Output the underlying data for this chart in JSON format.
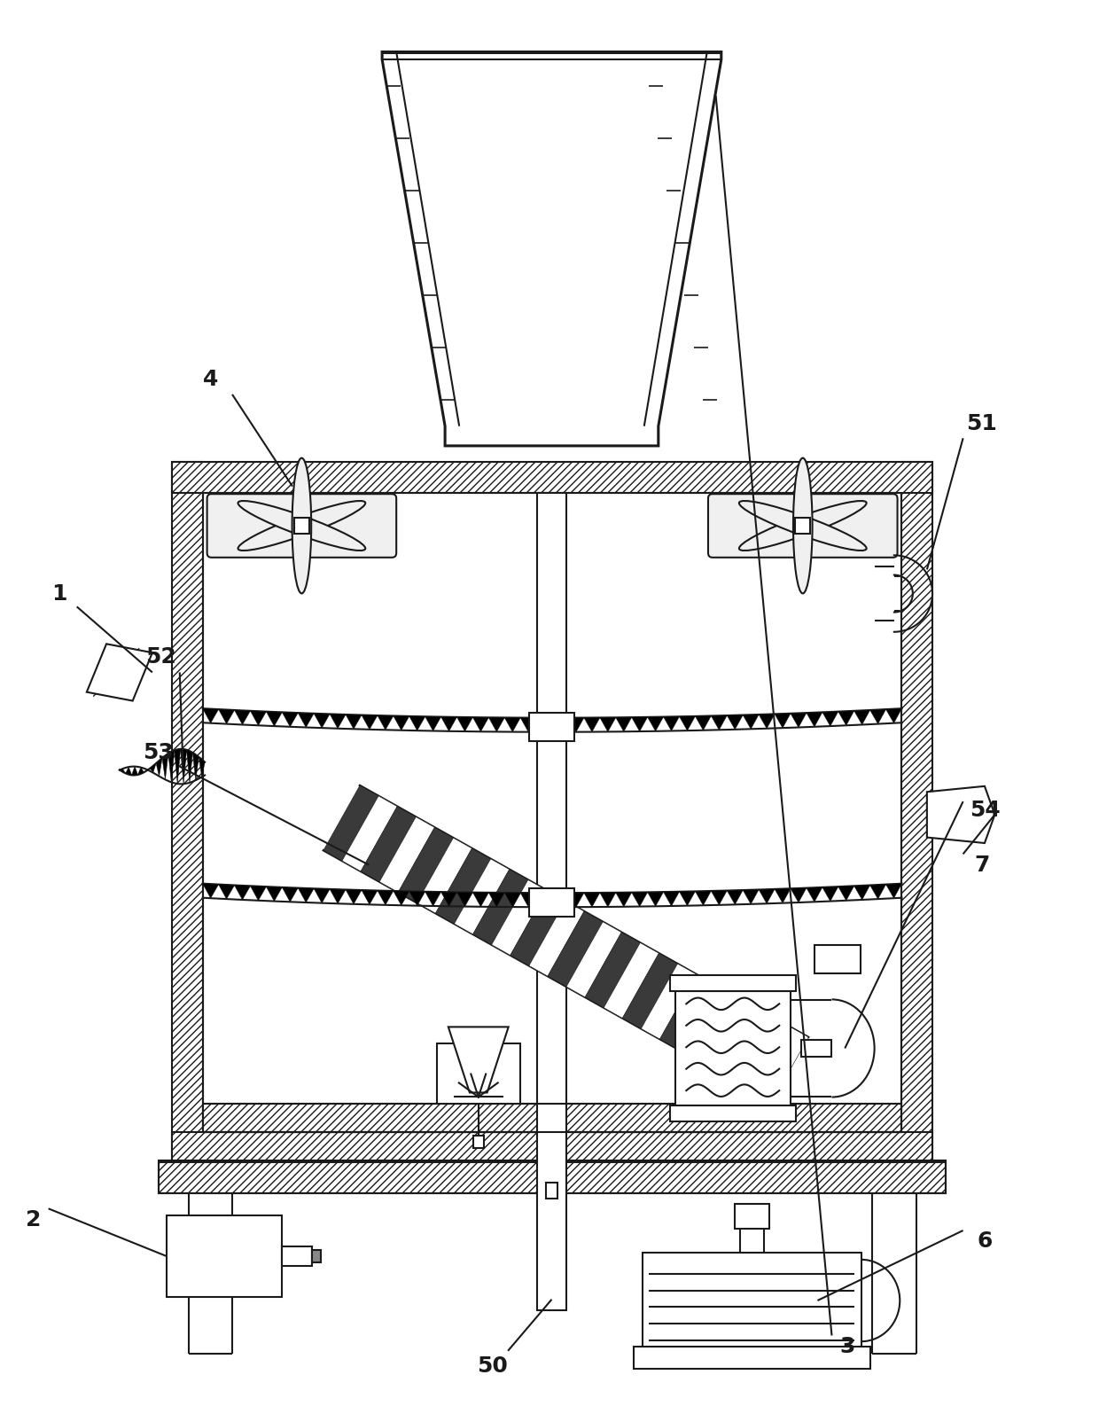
{
  "bg_color": "#ffffff",
  "lc": "#1a1a1a",
  "lw": 1.5,
  "tlw": 2.2,
  "figsize": [
    12.4,
    15.86
  ],
  "dpi": 100
}
